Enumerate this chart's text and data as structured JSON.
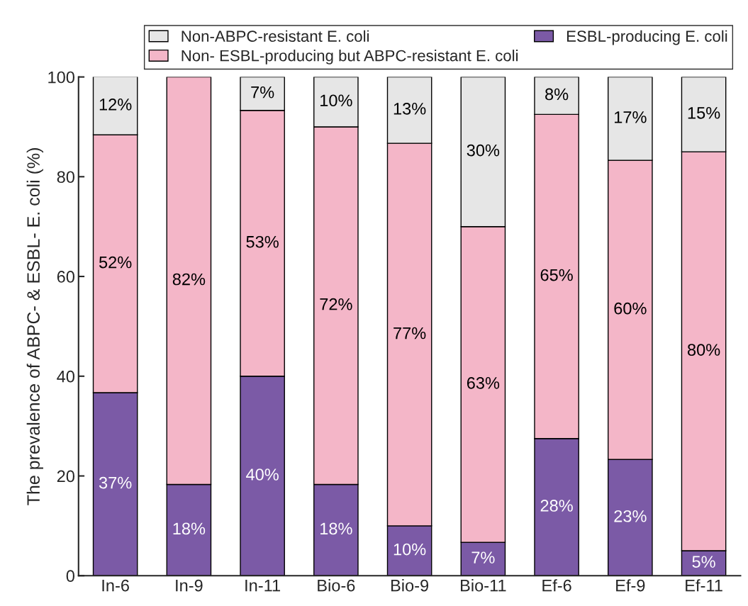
{
  "chart_data": {
    "type": "bar",
    "stacked": true,
    "ylabel": "The prevalence of ABPC- & ESBL- E. coli (%)",
    "categories": [
      "In-6",
      "In-9",
      "In-11",
      "Bio-6",
      "Bio-9",
      "Bio-11",
      "Ef-6",
      "Ef-9",
      "Ef-11"
    ],
    "series": [
      {
        "name": "ESBL-producing E. coli",
        "color": "#7b5aa6",
        "values": [
          36.7,
          18.3,
          40.0,
          18.3,
          10.0,
          6.7,
          27.5,
          23.3,
          5.0
        ],
        "value_labels": [
          "37%",
          "18%",
          "40%",
          "18%",
          "10%",
          "7%",
          "28%",
          "23%",
          "5%"
        ]
      },
      {
        "name": "Non- ESBL-producing but ABPC-resistant E. coli",
        "color": "#f4b6c8",
        "values": [
          51.7,
          81.7,
          53.3,
          71.7,
          76.7,
          63.3,
          65.0,
          60.0,
          80.0
        ],
        "value_labels": [
          "52%",
          "82%",
          "53%",
          "72%",
          "77%",
          "63%",
          "65%",
          "60%",
          "80%"
        ]
      },
      {
        "name": "Non-ABPC-resistant E. coli",
        "color": "#e6e6e6",
        "values": [
          11.7,
          null,
          6.7,
          10.0,
          13.3,
          30.0,
          7.5,
          16.7,
          15.0
        ],
        "value_labels": [
          "12%",
          null,
          "7%",
          "10%",
          "13%",
          "30%",
          "8%",
          "17%",
          "15%"
        ]
      }
    ],
    "ylim": [
      0,
      100
    ],
    "yticks": [
      0,
      20,
      40,
      60,
      80,
      100
    ],
    "legend": "top",
    "grid": false
  }
}
